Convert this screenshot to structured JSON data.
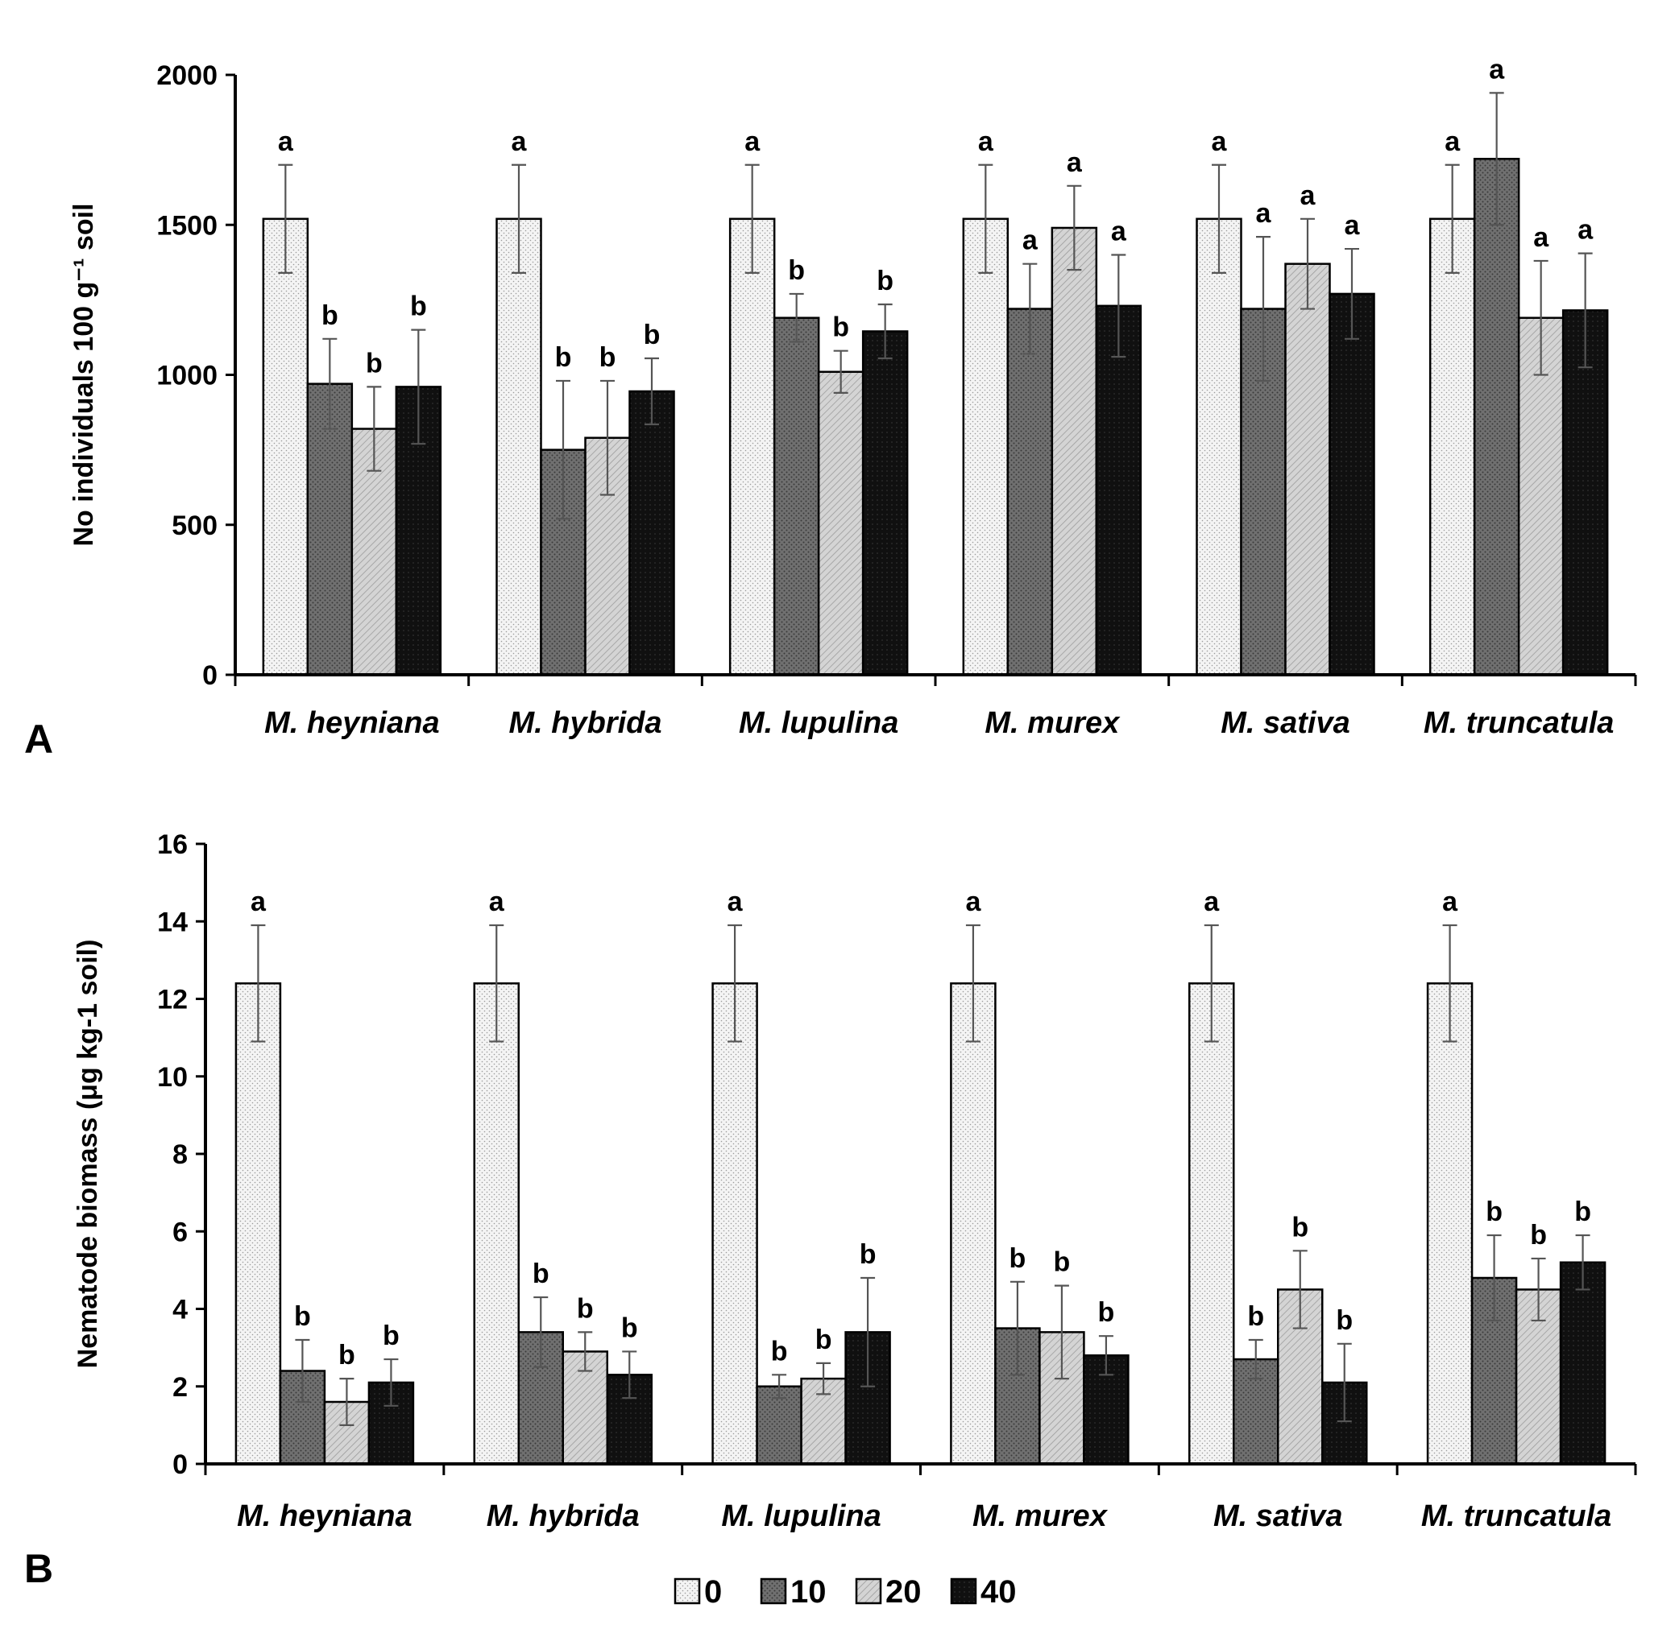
{
  "chart_data": [
    {
      "type": "bar",
      "panel_label": "A",
      "ylabel": "No individuals 100 g⁻¹ soil",
      "ylim": [
        0,
        2000
      ],
      "yticks": [
        0,
        500,
        1000,
        1500,
        2000
      ],
      "categories": [
        "M. heyniana",
        "M. hybrida",
        "M. lupulina",
        "M. murex",
        "M. sativa",
        "M. truncatula"
      ],
      "series": [
        {
          "name": "0",
          "color": "#f2f2f2",
          "values": [
            1520,
            1520,
            1520,
            1520,
            1520,
            1520
          ],
          "errors": [
            180,
            180,
            180,
            180,
            180,
            180
          ],
          "letters": [
            "a",
            "a",
            "a",
            "a",
            "a",
            "a"
          ]
        },
        {
          "name": "10",
          "color": "#6e6e6e",
          "values": [
            970,
            750,
            1190,
            1220,
            1220,
            1720
          ],
          "errors": [
            150,
            230,
            80,
            150,
            240,
            220
          ],
          "letters": [
            "b",
            "b",
            "b",
            "a",
            "a",
            "a"
          ]
        },
        {
          "name": "20",
          "color": "#cfcfcf",
          "values": [
            820,
            790,
            1010,
            1490,
            1370,
            1190
          ],
          "errors": [
            140,
            190,
            70,
            140,
            150,
            190
          ],
          "letters": [
            "b",
            "b",
            "b",
            "a",
            "a",
            "a"
          ]
        },
        {
          "name": "40",
          "color": "#0d0d0d",
          "values": [
            960,
            945,
            1145,
            1230,
            1270,
            1215
          ],
          "errors": [
            190,
            110,
            90,
            170,
            150,
            190
          ],
          "letters": [
            "b",
            "b",
            "b",
            "a",
            "a",
            "a"
          ]
        }
      ]
    },
    {
      "type": "bar",
      "panel_label": "B",
      "ylabel": "Nematode biomass (μg kg-1 soil)",
      "ylim": [
        0,
        16
      ],
      "yticks": [
        0,
        2,
        4,
        6,
        8,
        10,
        12,
        14,
        16
      ],
      "categories": [
        "M. heyniana",
        "M. hybrida",
        "M. lupulina",
        "M. murex",
        "M. sativa",
        "M. truncatula"
      ],
      "series": [
        {
          "name": "0",
          "color": "#f2f2f2",
          "values": [
            12.4,
            12.4,
            12.4,
            12.4,
            12.4,
            12.4
          ],
          "errors": [
            1.5,
            1.5,
            1.5,
            1.5,
            1.5,
            1.5
          ],
          "letters": [
            "a",
            "a",
            "a",
            "a",
            "a",
            "a"
          ]
        },
        {
          "name": "10",
          "color": "#6e6e6e",
          "values": [
            2.4,
            3.4,
            2.0,
            3.5,
            2.7,
            4.8
          ],
          "errors": [
            0.8,
            0.9,
            0.3,
            1.2,
            0.5,
            1.1
          ],
          "letters": [
            "b",
            "b",
            "b",
            "b",
            "b",
            "b"
          ]
        },
        {
          "name": "20",
          "color": "#cfcfcf",
          "values": [
            1.6,
            2.9,
            2.2,
            3.4,
            4.5,
            4.5
          ],
          "errors": [
            0.6,
            0.5,
            0.4,
            1.2,
            1.0,
            0.8
          ],
          "letters": [
            "b",
            "b",
            "b",
            "b",
            "b",
            "b"
          ]
        },
        {
          "name": "40",
          "color": "#0d0d0d",
          "values": [
            2.1,
            2.3,
            3.4,
            2.8,
            2.1,
            5.2
          ],
          "errors": [
            0.6,
            0.6,
            1.4,
            0.5,
            1.0,
            0.7
          ],
          "letters": [
            "b",
            "b",
            "b",
            "b",
            "b",
            "b"
          ]
        }
      ]
    }
  ],
  "legend": {
    "position": "bottom-center",
    "entries": [
      "0",
      "10",
      "20",
      "40"
    ]
  }
}
